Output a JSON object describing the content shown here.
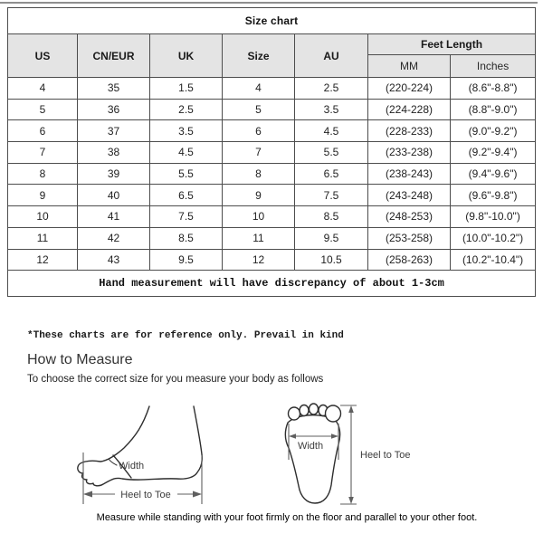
{
  "colors": {
    "header_bg": "#e4e4e4",
    "table_border": "#4d4d4d",
    "top_line": "#8f8f8f"
  },
  "table": {
    "title": "Size chart",
    "columns": [
      "US",
      "CN/EUR",
      "UK",
      "Size",
      "AU"
    ],
    "feet_length_header": "Feet Length",
    "feet_length_sub": [
      "MM",
      "Inches"
    ],
    "rows": [
      [
        "4",
        "35",
        "1.5",
        "4",
        "2.5",
        "(220-224)",
        "(8.6\"-8.8\")"
      ],
      [
        "5",
        "36",
        "2.5",
        "5",
        "3.5",
        "(224-228)",
        "(8.8\"-9.0\")"
      ],
      [
        "6",
        "37",
        "3.5",
        "6",
        "4.5",
        "(228-233)",
        "(9.0\"-9.2\")"
      ],
      [
        "7",
        "38",
        "4.5",
        "7",
        "5.5",
        "(233-238)",
        "(9.2\"-9.4\")"
      ],
      [
        "8",
        "39",
        "5.5",
        "8",
        "6.5",
        "(238-243)",
        "(9.4\"-9.6\")"
      ],
      [
        "9",
        "40",
        "6.5",
        "9",
        "7.5",
        "(243-248)",
        "(9.6\"-9.8\")"
      ],
      [
        "10",
        "41",
        "7.5",
        "10",
        "8.5",
        "(248-253)",
        "(9.8\"-10.0\")"
      ],
      [
        "11",
        "42",
        "8.5",
        "11",
        "9.5",
        "(253-258)",
        "(10.0\"-10.2\")"
      ],
      [
        "12",
        "43",
        "9.5",
        "12",
        "10.5",
        "(258-263)",
        "(10.2\"-10.4\")"
      ]
    ],
    "footnote": "Hand measurement will have discrepancy of about 1-3cm"
  },
  "notes": {
    "reference": "*These charts are for reference only. Prevail in kind",
    "how_to_measure_title": "How to Measure",
    "how_to_measure_sub": "To choose the correct size for you measure your body as follows",
    "caption": "Measure while standing with your foot firmly on the floor and parallel to your other foot."
  },
  "diagrams": {
    "side": {
      "width_label": "Width",
      "heel_to_toe_label": "Heel to Toe"
    },
    "top": {
      "width_label": "Width",
      "heel_to_toe_label": "Heel to Toe"
    }
  }
}
